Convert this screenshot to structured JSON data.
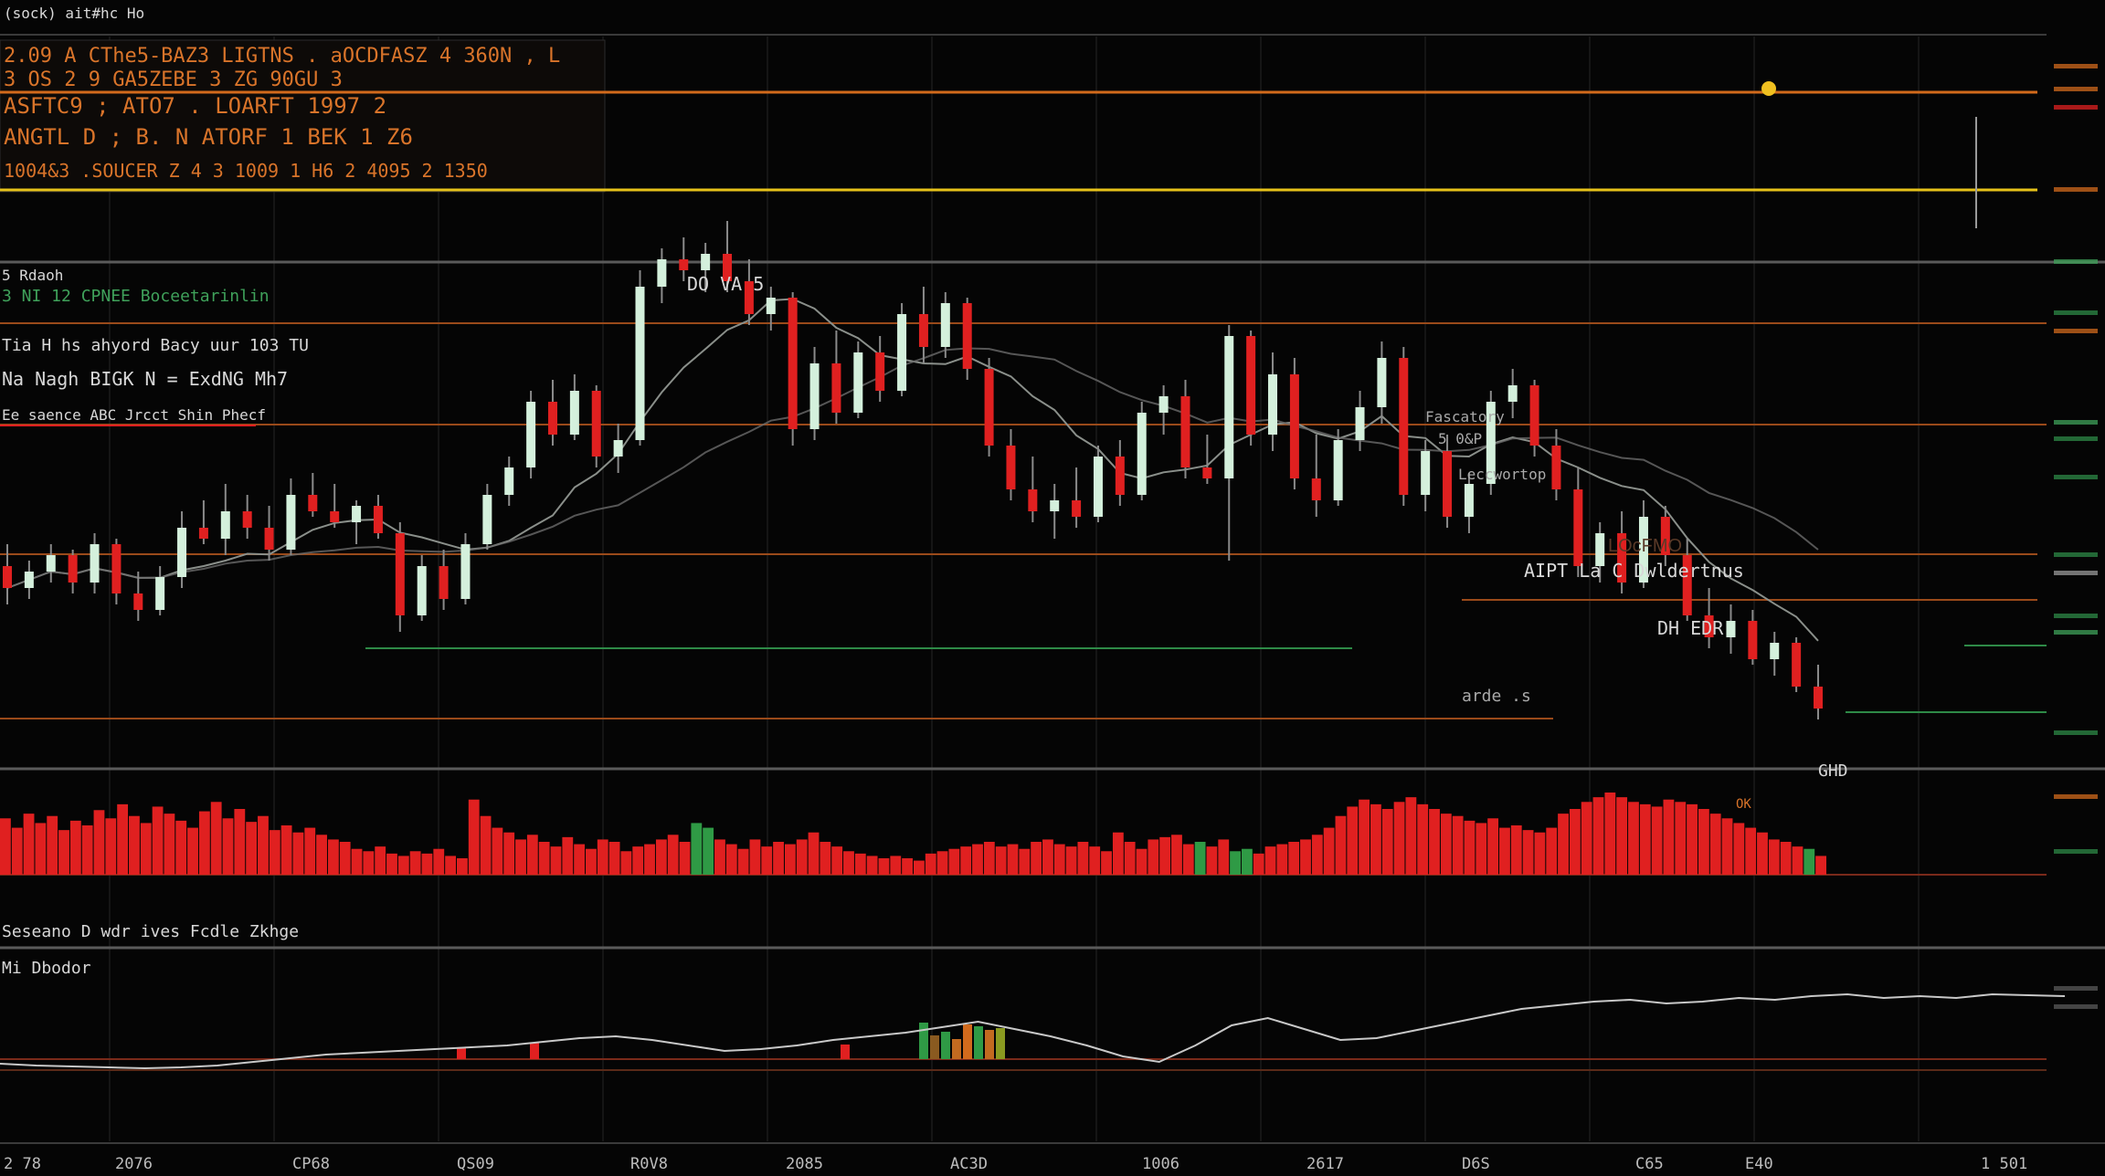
{
  "header": {
    "title": "(sock) ait#hc Ho",
    "info_lines": [
      "2.09 A CThe5-BAZ3 LIGTNS . aOCDFASZ 4 360N , L",
      "3 OS 2 9 GA5ZEBE 3 ZG 90GU 3",
      "ASFTC9 ; ATO7 . LOARFT 1997 2",
      "ANGTL D ; B. N ATORF 1 BEK 1 Z6",
      "1004&3 .SOUCER Z 4 3 1009 1 H6 2 4095 2 1350"
    ]
  },
  "panel_labels": {
    "price_title": "5 Rdaoh",
    "line1": "3 NI 12 CPNEE Boceetarinlin",
    "line2": "Tia H hs ahyord Bacy uur 103 TU",
    "line3": "Na Nagh BIGK N = ExdNG Mh7",
    "line4": "Ee saence ABC Jrcct Shin Phecf",
    "volume_label": "Seseano D wdr ives Fcdle Zkhge",
    "osc_label": "Mi Dbodor"
  },
  "annotations": [
    {
      "text": "DO VA 5",
      "color": "#d8d8d8"
    },
    {
      "text": "Fascatory",
      "color": "#a9a9a9"
    },
    {
      "text": "5 0&P",
      "color": "#a9a9a9"
    },
    {
      "text": "Leccwortop",
      "color": "#a9a9a9"
    },
    {
      "text": "AIPT La C Dwldertnus",
      "color": "#d8d8d8"
    },
    {
      "text": "LOcFMO",
      "color": "#5a3a28"
    },
    {
      "text": "DH EDR",
      "color": "#d8d8d8"
    },
    {
      "text": "arde .s",
      "color": "#a9a9a9"
    },
    {
      "text": "GHD",
      "color": "#d8d8d8"
    },
    {
      "text": "OK",
      "color": "#d9742a"
    }
  ],
  "x_axis_labels": [
    "2 78",
    "2076",
    "CP68",
    "QS09",
    "R0V8",
    "2085",
    "AC3D",
    "1006",
    "2617",
    "D6S",
    "C65",
    "E40",
    "1 501"
  ],
  "colors": {
    "background": "#050505",
    "up": "#d4f0dc",
    "down": "#e02020",
    "vol_up": "#2f9a45",
    "orange_line": "#d26a1c",
    "yellow_line": "#e6c21a",
    "ma_line": "#8a8f8a",
    "osc_line": "#c8c8c8"
  },
  "chart_data": {
    "type": "candlestick",
    "price_candles_ohlc": [
      [
        40,
        44,
        33,
        36
      ],
      [
        36,
        41,
        34,
        39
      ],
      [
        39,
        44,
        37,
        42
      ],
      [
        42,
        43,
        35,
        37
      ],
      [
        37,
        46,
        35,
        44
      ],
      [
        44,
        45,
        33,
        35
      ],
      [
        35,
        39,
        30,
        32
      ],
      [
        32,
        40,
        31,
        38
      ],
      [
        38,
        50,
        36,
        47
      ],
      [
        47,
        52,
        44,
        45
      ],
      [
        45,
        55,
        42,
        50
      ],
      [
        50,
        53,
        45,
        47
      ],
      [
        47,
        51,
        41,
        43
      ],
      [
        43,
        56,
        42,
        53
      ],
      [
        53,
        57,
        49,
        50
      ],
      [
        50,
        55,
        47,
        48
      ],
      [
        48,
        52,
        44,
        51
      ],
      [
        51,
        53,
        45,
        46
      ],
      [
        46,
        48,
        28,
        31
      ],
      [
        31,
        42,
        30,
        40
      ],
      [
        40,
        43,
        32,
        34
      ],
      [
        34,
        46,
        33,
        44
      ],
      [
        44,
        55,
        43,
        53
      ],
      [
        53,
        60,
        51,
        58
      ],
      [
        58,
        72,
        56,
        70
      ],
      [
        70,
        74,
        62,
        64
      ],
      [
        64,
        75,
        63,
        72
      ],
      [
        72,
        73,
        58,
        60
      ],
      [
        60,
        66,
        57,
        63
      ],
      [
        63,
        94,
        62,
        91
      ],
      [
        91,
        98,
        88,
        96
      ],
      [
        96,
        100,
        92,
        94
      ],
      [
        94,
        99,
        90,
        97
      ],
      [
        97,
        103,
        90,
        92
      ],
      [
        92,
        96,
        84,
        86
      ],
      [
        86,
        91,
        83,
        89
      ],
      [
        89,
        90,
        62,
        65
      ],
      [
        65,
        80,
        63,
        77
      ],
      [
        77,
        83,
        66,
        68
      ],
      [
        68,
        81,
        67,
        79
      ],
      [
        79,
        82,
        70,
        72
      ],
      [
        72,
        88,
        71,
        86
      ],
      [
        86,
        91,
        77,
        80
      ],
      [
        80,
        90,
        78,
        88
      ],
      [
        88,
        89,
        74,
        76
      ],
      [
        76,
        78,
        60,
        62
      ],
      [
        62,
        65,
        52,
        54
      ],
      [
        54,
        60,
        48,
        50
      ],
      [
        50,
        55,
        45,
        52
      ],
      [
        52,
        58,
        47,
        49
      ],
      [
        49,
        62,
        48,
        60
      ],
      [
        60,
        63,
        51,
        53
      ],
      [
        53,
        70,
        52,
        68
      ],
      [
        68,
        73,
        64,
        71
      ],
      [
        71,
        74,
        56,
        58
      ],
      [
        58,
        64,
        55,
        56
      ],
      [
        56,
        84,
        41,
        82
      ],
      [
        82,
        83,
        62,
        64
      ],
      [
        64,
        79,
        61,
        75
      ],
      [
        75,
        78,
        54,
        56
      ],
      [
        56,
        64,
        49,
        52
      ],
      [
        52,
        65,
        51,
        63
      ],
      [
        63,
        72,
        61,
        69
      ],
      [
        69,
        81,
        66,
        78
      ],
      [
        78,
        80,
        51,
        53
      ],
      [
        53,
        63,
        50,
        61
      ],
      [
        61,
        64,
        47,
        49
      ],
      [
        49,
        57,
        46,
        55
      ],
      [
        55,
        72,
        53,
        70
      ],
      [
        70,
        76,
        67,
        73
      ],
      [
        73,
        74,
        60,
        62
      ],
      [
        62,
        65,
        52,
        54
      ],
      [
        54,
        58,
        38,
        40
      ],
      [
        40,
        48,
        37,
        46
      ],
      [
        46,
        50,
        35,
        37
      ],
      [
        37,
        52,
        36,
        49
      ],
      [
        49,
        51,
        40,
        42
      ],
      [
        42,
        45,
        30,
        31
      ],
      [
        31,
        36,
        25,
        27
      ],
      [
        27,
        33,
        24,
        30
      ],
      [
        30,
        32,
        22,
        23
      ],
      [
        23,
        28,
        20,
        26
      ],
      [
        26,
        27,
        17,
        18
      ],
      [
        18,
        22,
        12,
        14
      ]
    ],
    "volume_direction": [
      "d",
      "d",
      "d",
      "d",
      "d",
      "d",
      "d",
      "d",
      "d",
      "d",
      "d",
      "d",
      "d",
      "d",
      "d",
      "d",
      "d",
      "d",
      "d",
      "d",
      "d",
      "d",
      "d",
      "d",
      "d",
      "d",
      "d",
      "d",
      "d",
      "d",
      "d",
      "d",
      "d",
      "d",
      "d",
      "d",
      "d",
      "d",
      "d",
      "d",
      "d",
      "d",
      "d",
      "d",
      "d",
      "d",
      "d",
      "d",
      "d",
      "d",
      "d",
      "d",
      "d",
      "d",
      "d",
      "d",
      "d",
      "d",
      "d",
      "u",
      "u",
      "d",
      "d",
      "d",
      "d",
      "d",
      "d",
      "d",
      "d",
      "d",
      "d",
      "d",
      "d",
      "d",
      "d",
      "d",
      "d",
      "d",
      "d",
      "d",
      "d",
      "d",
      "d",
      "d",
      "d",
      "d",
      "d",
      "d",
      "d",
      "d",
      "d",
      "d",
      "d",
      "d",
      "d",
      "d",
      "d",
      "d",
      "d",
      "d",
      "d",
      "d",
      "u",
      "d",
      "d",
      "u",
      "u",
      "d",
      "d",
      "d",
      "d",
      "d",
      "d",
      "d",
      "d",
      "d",
      "d",
      "d",
      "d",
      "d",
      "d",
      "d",
      "d",
      "d",
      "d",
      "d",
      "d",
      "d",
      "d",
      "d",
      "d",
      "d",
      "d",
      "d",
      "d",
      "d",
      "d",
      "d",
      "d",
      "d",
      "d",
      "d",
      "d",
      "d",
      "d",
      "d",
      "d",
      "d",
      "d",
      "d",
      "d",
      "d",
      "d",
      "d",
      "u",
      "d"
    ],
    "volume_values": [
      48,
      40,
      52,
      44,
      50,
      38,
      46,
      42,
      55,
      48,
      60,
      50,
      44,
      58,
      52,
      46,
      40,
      54,
      62,
      48,
      56,
      45,
      50,
      38,
      42,
      36,
      40,
      34,
      30,
      28,
      22,
      20,
      24,
      18,
      16,
      20,
      18,
      22,
      16,
      14,
      64,
      50,
      40,
      36,
      30,
      34,
      28,
      24,
      32,
      26,
      22,
      30,
      28,
      20,
      24,
      26,
      30,
      34,
      28,
      44,
      40,
      30,
      26,
      22,
      30,
      24,
      28,
      26,
      30,
      36,
      28,
      24,
      20,
      18,
      16,
      14,
      16,
      14,
      12,
      18,
      20,
      22,
      24,
      26,
      28,
      24,
      26,
      22,
      28,
      30,
      26,
      24,
      28,
      24,
      20,
      36,
      28,
      22,
      30,
      32,
      34,
      26,
      28,
      24,
      30,
      20,
      22,
      18,
      24,
      26,
      28,
      30,
      34,
      40,
      50,
      58,
      64,
      60,
      56,
      62,
      66,
      60,
      56,
      52,
      50,
      46,
      44,
      48,
      40,
      42,
      38,
      36,
      40,
      52,
      56,
      62,
      66,
      70,
      66,
      62,
      60,
      58,
      64,
      62,
      60,
      56,
      52,
      48,
      44,
      40,
      36,
      30,
      28,
      24,
      22,
      16
    ],
    "oscillator_values": [
      20,
      18,
      17,
      16,
      15,
      16,
      18,
      22,
      26,
      30,
      32,
      34,
      36,
      38,
      40,
      44,
      48,
      50,
      46,
      40,
      34,
      36,
      40,
      46,
      50,
      54,
      60,
      66,
      58,
      50,
      40,
      28,
      22,
      40,
      62,
      70,
      58,
      46,
      48,
      56,
      64,
      72,
      80,
      84,
      88,
      90,
      86,
      88,
      92,
      90,
      94,
      96,
      92,
      94,
      92,
      96,
      95,
      94
    ],
    "y_axis_shown": false
  }
}
